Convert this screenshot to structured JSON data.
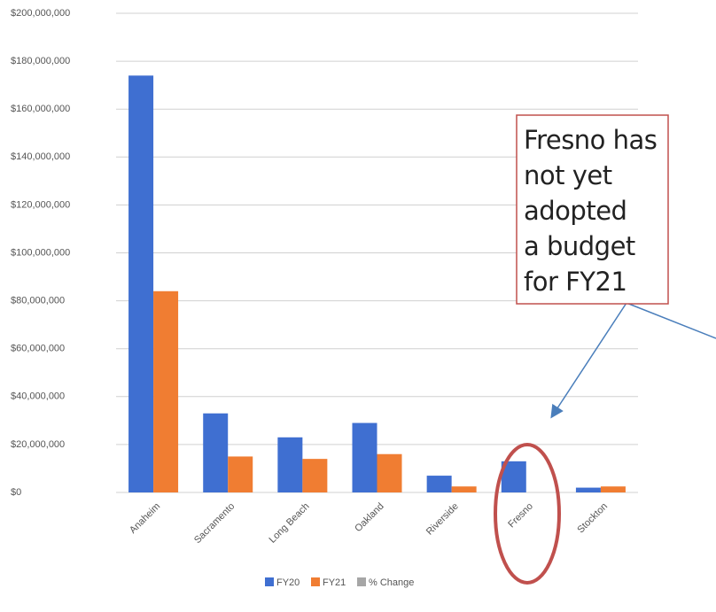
{
  "chart_data": {
    "type": "bar",
    "categories": [
      "Anaheim",
      "Sacramento",
      "Long Beach",
      "Oakland",
      "Riverside",
      "Fresno",
      "Stockton"
    ],
    "series": [
      {
        "name": "FY20",
        "color": "#3f6fd1",
        "values": [
          174000000,
          33000000,
          23000000,
          29000000,
          7000000,
          13000000,
          2000000
        ]
      },
      {
        "name": "FY21",
        "color": "#f07d32",
        "values": [
          84000000,
          15000000,
          14000000,
          16000000,
          2500000,
          null,
          2500000
        ]
      },
      {
        "name": "% Change",
        "color": "#a6a6a6",
        "values": [
          null,
          null,
          null,
          null,
          null,
          null,
          null
        ]
      }
    ],
    "ylim": [
      0,
      200000000
    ],
    "yticks": [
      {
        "value": 0,
        "label": "$0"
      },
      {
        "value": 20000000,
        "label": "$20,000,000"
      },
      {
        "value": 40000000,
        "label": "$40,000,000"
      },
      {
        "value": 60000000,
        "label": "$60,000,000"
      },
      {
        "value": 80000000,
        "label": "$80,000,000"
      },
      {
        "value": 100000000,
        "label": "$100,000,000"
      },
      {
        "value": 120000000,
        "label": "$120,000,000"
      },
      {
        "value": 140000000,
        "label": "$140,000,000"
      },
      {
        "value": 160000000,
        "label": "$160,000,000"
      },
      {
        "value": 180000000,
        "label": "$180,000,000"
      },
      {
        "value": 200000000,
        "label": "$200,000,000"
      }
    ],
    "grid": true,
    "legend": "bottom",
    "annotation": [
      "Fresno has",
      "not yet",
      "adopted",
      "a budget",
      "for FY21"
    ]
  }
}
